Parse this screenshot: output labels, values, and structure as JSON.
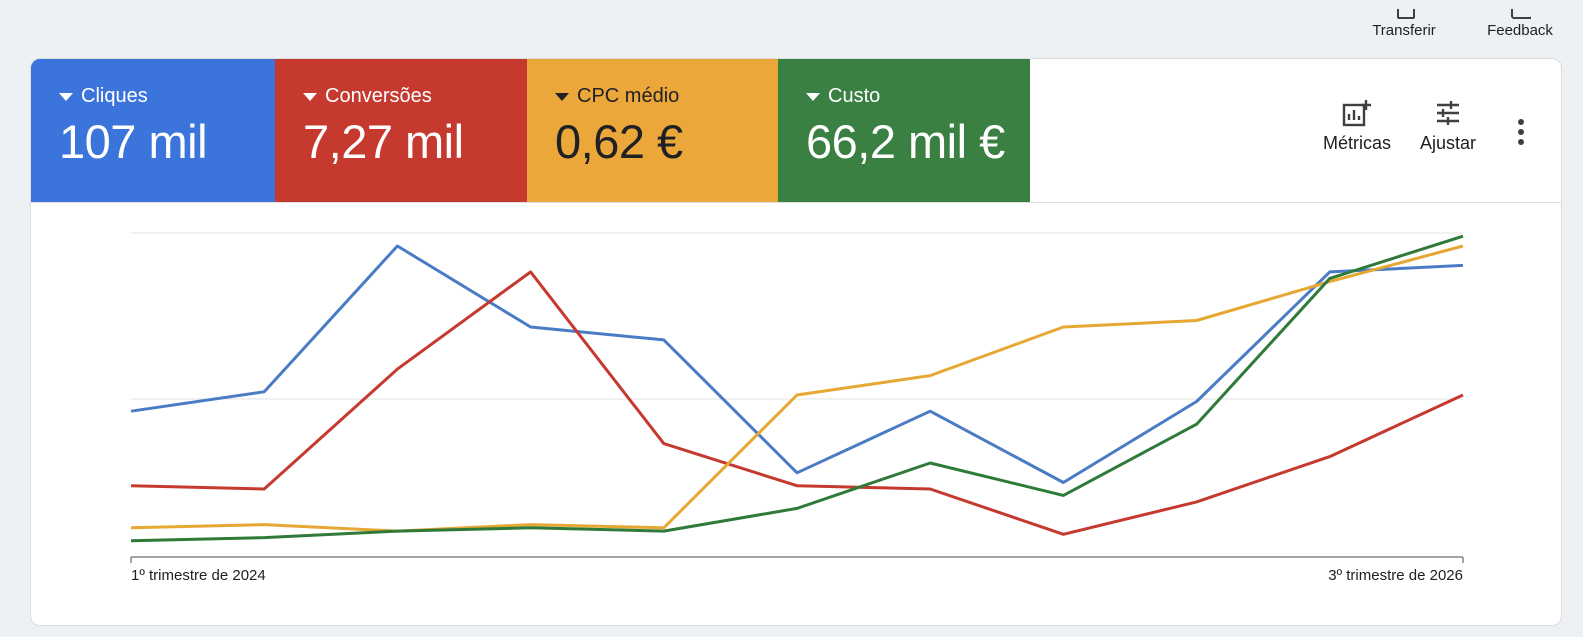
{
  "toolbar": {
    "transfer_label": "Transferir",
    "feedback_label": "Feedback"
  },
  "scorecards": [
    {
      "label": "Cliques",
      "value": "107 mil",
      "color": "#3b74db"
    },
    {
      "label": "Conversões",
      "value": "7,27 mil",
      "color": "#c5392f"
    },
    {
      "label": "CPC médio",
      "value": "0,62 €",
      "color": "#eca73a"
    },
    {
      "label": "Custo",
      "value": "66,2 mil €",
      "color": "#398042"
    }
  ],
  "actions": {
    "metrics_label": "Métricas",
    "adjust_label": "Ajustar"
  },
  "chart_data": {
    "type": "line",
    "x_start_label": "1º trimestre de 2024",
    "x_end_label": "3º trimestre de 2026",
    "grid": true,
    "ylim": [
      0,
      100
    ],
    "series": [
      {
        "name": "Cliques",
        "color": "#4a7cc6",
        "values": [
          45,
          51,
          96,
          71,
          67,
          26,
          45,
          23,
          48,
          88,
          90
        ]
      },
      {
        "name": "Conversões",
        "color": "#c5392f",
        "values": [
          22,
          21,
          58,
          88,
          35,
          22,
          21,
          7,
          17,
          31,
          50
        ]
      },
      {
        "name": "CPC médio",
        "color": "#e6a733",
        "values": [
          9,
          10,
          8,
          10,
          9,
          50,
          56,
          71,
          73,
          85,
          96
        ]
      },
      {
        "name": "Custo",
        "color": "#2f7a39",
        "values": [
          5,
          6,
          8,
          9,
          8,
          15,
          29,
          19,
          41,
          86,
          99
        ]
      }
    ]
  }
}
